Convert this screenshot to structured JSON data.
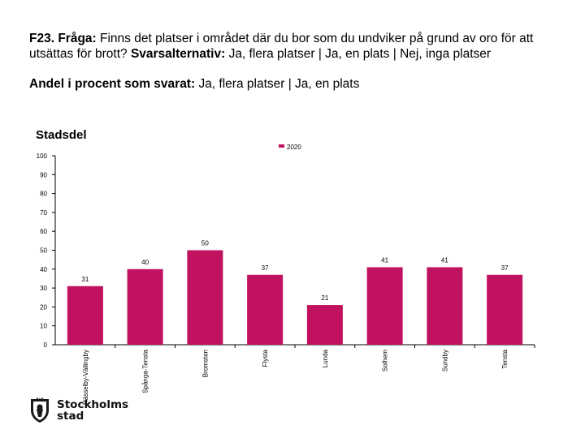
{
  "title": {
    "label": "F23. Fråga:",
    "question": "Finns det platser i området där du bor som du undviker på grund av oro för att utsättas för brott?",
    "alt_label": "Svarsalternativ:",
    "alternatives": "Ja, flera platser | Ja, en plats | Nej, inga platser"
  },
  "subtitle": {
    "label": "Andel i procent som svarat:",
    "text": "Ja, flera platser | Ja, en plats"
  },
  "chart_data": {
    "type": "bar",
    "title": "Stadsdel",
    "categories": [
      "Hässelby-Vällingby",
      "Spånga-Tensta",
      "Bromsten",
      "Flysta",
      "Lunda",
      "Solhem",
      "Sundby",
      "Tensta"
    ],
    "series": [
      {
        "name": "2020",
        "color": "#c0125f",
        "values": [
          31,
          40,
          50,
          37,
          21,
          41,
          41,
          37
        ]
      }
    ],
    "data_labels": [
      "31",
      "40",
      "50",
      "37",
      "21",
      "41",
      "41",
      "37"
    ],
    "xlabel": "",
    "ylabel": "",
    "ylim": [
      0,
      100
    ],
    "yticks": [
      0,
      10,
      20,
      30,
      40,
      50,
      60,
      70,
      80,
      90,
      100
    ],
    "legend_position": "top-center",
    "grid": false
  },
  "logo": {
    "line1": "Stockholms",
    "line2": "stad"
  }
}
